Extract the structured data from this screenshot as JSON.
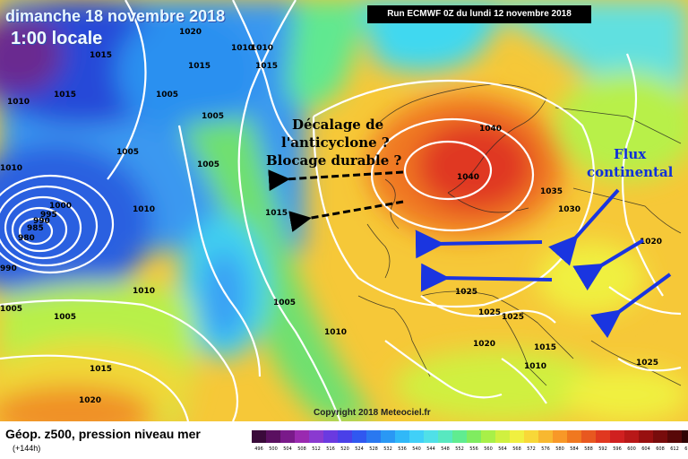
{
  "header": {
    "date": "dimanche 18 novembre 2018",
    "time": "1:00 locale",
    "run_label": "Run ECMWF 0Z du lundi 12 novembre 2018"
  },
  "annotations": {
    "shift_line1": "Décalage de",
    "shift_line2": "l'anticyclone ?",
    "shift_line3": "Blocage durable ?",
    "flux_line1": "Flux",
    "flux_line2": "continental"
  },
  "isobars": {
    "l1020_nw": "1020",
    "l1010_a": "1010",
    "l1010_b": "1010",
    "l1015_a": "1015",
    "l1015_b": "1015",
    "l1015_c": "1015",
    "l1015_d": "1015",
    "l1010_w": "1010",
    "l1005_a": "1005",
    "l1005_b": "1005",
    "l1005_c": "1005",
    "l1000": "1000",
    "l995": "995",
    "l990": "990",
    "l985": "985",
    "l980": "980",
    "l990b": "990",
    "l1010_c": "1010",
    "l1015_atl": "1015",
    "l1005_atl": "1005",
    "l1010_mid": "1010",
    "l1005_sw": "1005",
    "l1005_sw2": "1005",
    "l1015_sw": "1015",
    "l1020_sw": "1020",
    "l1040_a": "1040",
    "l1040_b": "1040",
    "l1035": "1035",
    "l1030": "1030",
    "l1020_e": "1020",
    "l1025_a": "1025",
    "l1025_b": "1025",
    "l1025_c": "1025",
    "l1020_s": "1020",
    "l1015_s": "1015",
    "l1010_s": "1010",
    "l1010_se": "1010",
    "l1025_se": "1025",
    "l1010_far": "1010"
  },
  "legend": {
    "title": "Géop. z500, pression niveau mer",
    "subtitle": "(+144h)",
    "scale": [
      {
        "value": "496",
        "color": "#3a0a3a"
      },
      {
        "value": "500",
        "color": "#5a1060"
      },
      {
        "value": "504",
        "color": "#7a1a8a"
      },
      {
        "value": "508",
        "color": "#9a2ab0"
      },
      {
        "value": "512",
        "color": "#8a3ad0"
      },
      {
        "value": "516",
        "color": "#6a3ae0"
      },
      {
        "value": "520",
        "color": "#4a40e8"
      },
      {
        "value": "524",
        "color": "#3058f0"
      },
      {
        "value": "528",
        "color": "#2a78f0"
      },
      {
        "value": "532",
        "color": "#2a98f4"
      },
      {
        "value": "536",
        "color": "#30b8f8"
      },
      {
        "value": "540",
        "color": "#40d0f8"
      },
      {
        "value": "544",
        "color": "#50e0e8"
      },
      {
        "value": "548",
        "color": "#58e8c0"
      },
      {
        "value": "552",
        "color": "#60ec90"
      },
      {
        "value": "556",
        "color": "#80ec60"
      },
      {
        "value": "560",
        "color": "#a8f048"
      },
      {
        "value": "564",
        "color": "#d0f040"
      },
      {
        "value": "568",
        "color": "#f0f040"
      },
      {
        "value": "572",
        "color": "#f8d838"
      },
      {
        "value": "576",
        "color": "#f8b830"
      },
      {
        "value": "580",
        "color": "#f89828"
      },
      {
        "value": "584",
        "color": "#f07820"
      },
      {
        "value": "588",
        "color": "#e85820"
      },
      {
        "value": "592",
        "color": "#e03820"
      },
      {
        "value": "596",
        "color": "#d02020"
      },
      {
        "value": "600",
        "color": "#b81818"
      },
      {
        "value": "604",
        "color": "#981010"
      },
      {
        "value": "608",
        "color": "#780c0c"
      },
      {
        "value": "612",
        "color": "#580808"
      },
      {
        "value": "616",
        "color": "#300404"
      }
    ]
  },
  "copyright": "Copyright 2018 Meteociel.fr"
}
